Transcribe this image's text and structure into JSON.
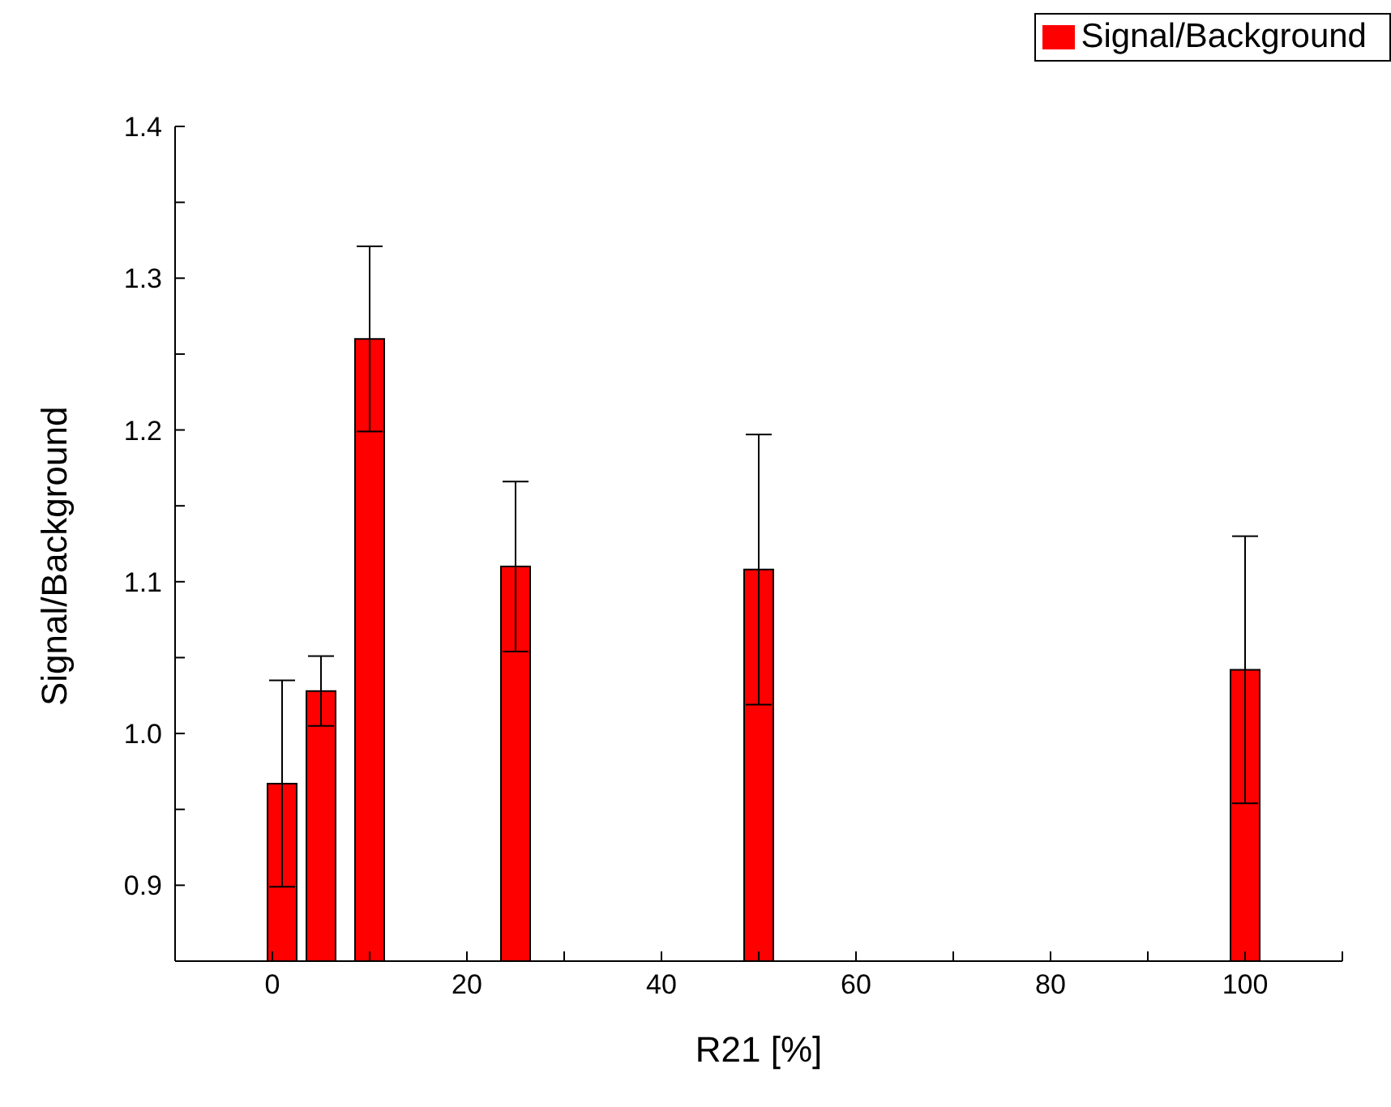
{
  "chart_data": {
    "type": "bar",
    "xlabel": "R21 [%]",
    "ylabel": "Signal/Background",
    "x": [
      1,
      5,
      10,
      25,
      50,
      100
    ],
    "series": [
      {
        "name": "Signal/Background",
        "color": "#ff0000",
        "values": [
          0.967,
          1.028,
          1.26,
          1.11,
          1.108,
          1.042
        ],
        "errors": [
          0.068,
          0.023,
          0.061,
          0.056,
          0.089,
          0.088
        ]
      }
    ],
    "xlim": [
      -10,
      110
    ],
    "xticks": [
      {
        "value": -10,
        "label": null
      },
      0,
      {
        "value": 10,
        "label": null
      },
      20,
      {
        "value": 30,
        "label": null
      },
      40,
      {
        "value": 50,
        "label": null
      },
      60,
      {
        "value": 70,
        "label": null
      },
      80,
      {
        "value": 90,
        "label": null
      },
      100,
      {
        "value": 110,
        "label": null
      }
    ],
    "ylim": [
      0.85,
      1.4
    ],
    "yticks": [
      {
        "value": 0.85,
        "label": null
      },
      {
        "value": 0.9,
        "label": "0.9"
      },
      {
        "value": 0.95,
        "label": null
      },
      {
        "value": 1.0,
        "label": "1.0"
      },
      {
        "value": 1.05,
        "label": null
      },
      {
        "value": 1.1,
        "label": "1.1"
      },
      {
        "value": 1.15,
        "label": null
      },
      {
        "value": 1.2,
        "label": "1.2"
      },
      {
        "value": 1.25,
        "label": null
      },
      {
        "value": 1.3,
        "label": "1.3"
      },
      {
        "value": 1.35,
        "label": null
      },
      {
        "value": 1.4,
        "label": "1.4"
      }
    ],
    "legend": "top right"
  }
}
